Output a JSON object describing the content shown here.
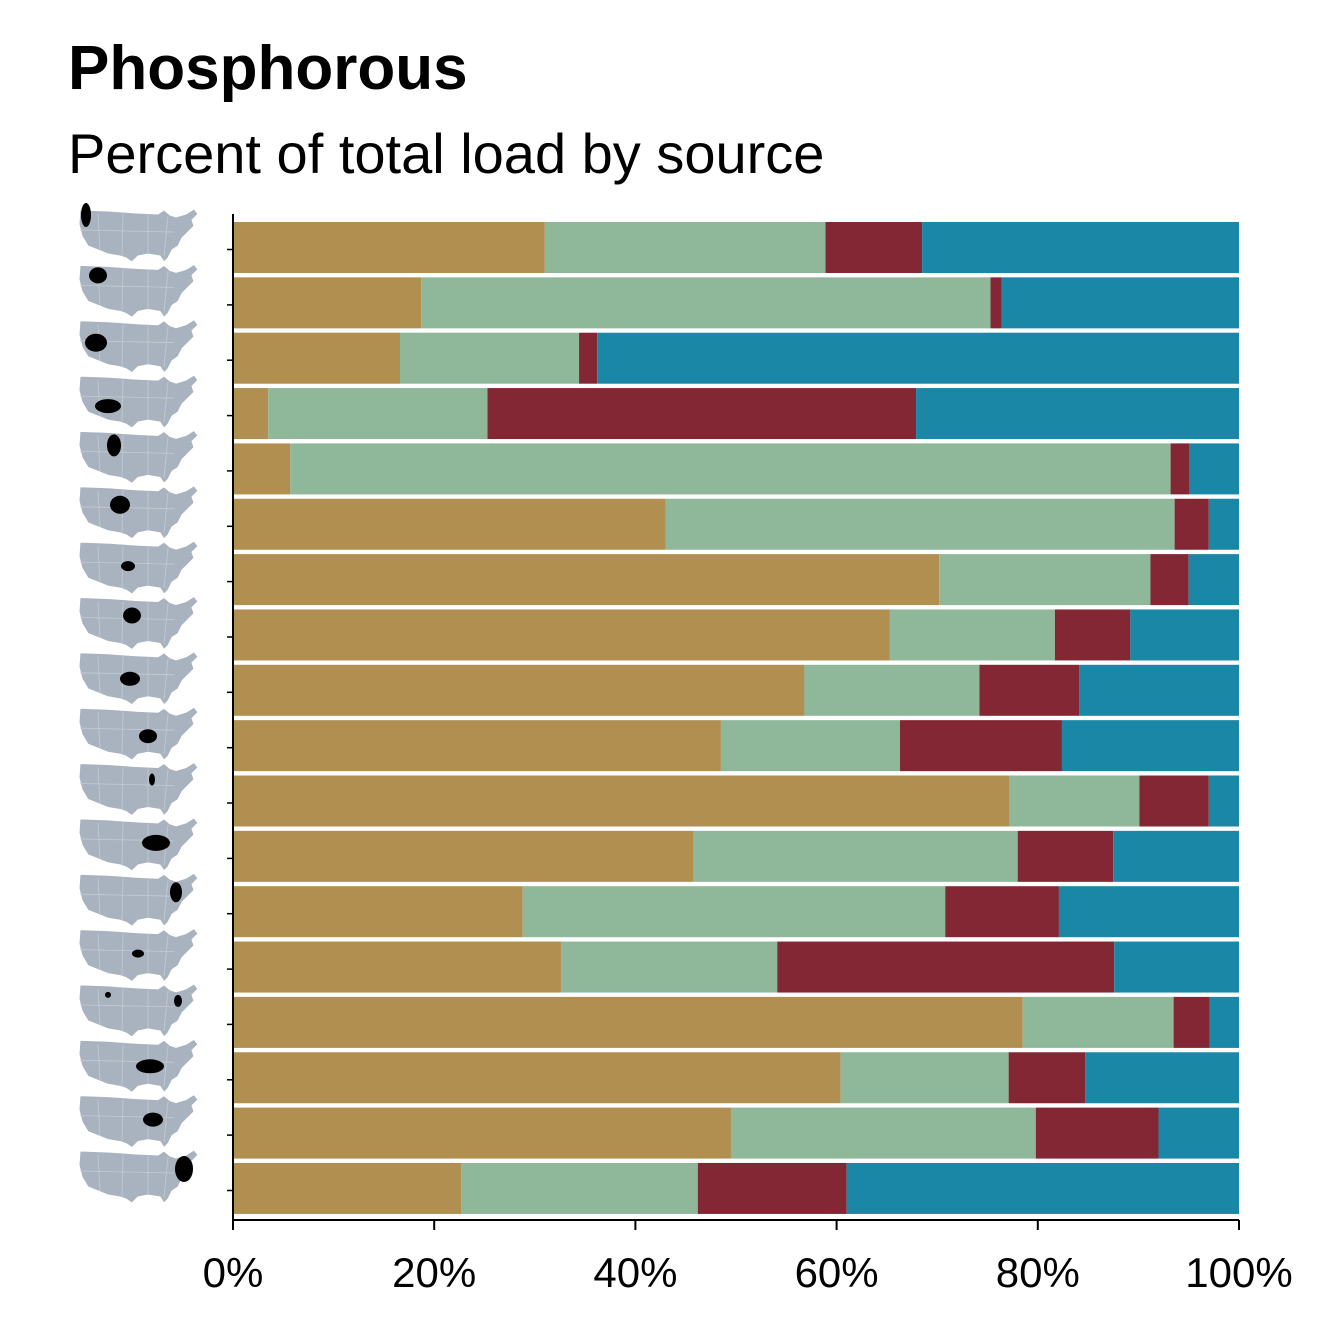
{
  "title": "Phosphorous",
  "subtitle": "Percent of total load by source",
  "chart_data": {
    "type": "bar",
    "orientation": "horizontal",
    "stacked": true,
    "title": "Phosphorous",
    "subtitle": "Percent of total load by source",
    "xlim": [
      0,
      100
    ],
    "x_ticks": [
      "0%",
      "20%",
      "40%",
      "60%",
      "80%",
      "100%"
    ],
    "row_icon": "us-map-region-icon",
    "colors": [
      "#b08f50",
      "#8fb89a",
      "#832735",
      "#1a87a6"
    ],
    "series": [
      {
        "values": [
          31.0,
          18.7,
          16.6,
          3.5,
          5.7,
          43.0,
          70.2,
          65.3,
          56.8,
          48.5,
          77.2,
          45.8,
          28.8,
          32.6,
          78.5,
          60.4,
          49.5,
          22.7
        ]
      },
      {
        "values": [
          27.9,
          56.6,
          17.8,
          21.8,
          87.5,
          50.6,
          21.0,
          16.4,
          17.4,
          17.8,
          12.9,
          32.2,
          42.0,
          21.5,
          15.0,
          16.7,
          30.3,
          23.5
        ]
      },
      {
        "values": [
          9.6,
          1.1,
          1.8,
          42.6,
          1.9,
          3.4,
          3.8,
          7.5,
          9.9,
          16.1,
          6.9,
          9.5,
          11.3,
          33.5,
          3.6,
          7.6,
          12.2,
          14.8
        ]
      },
      {
        "values": [
          31.5,
          23.6,
          63.8,
          32.1,
          4.9,
          3.0,
          5.0,
          10.8,
          15.9,
          17.6,
          3.0,
          12.5,
          17.9,
          12.4,
          2.9,
          15.3,
          8.0,
          39.0
        ]
      }
    ]
  }
}
